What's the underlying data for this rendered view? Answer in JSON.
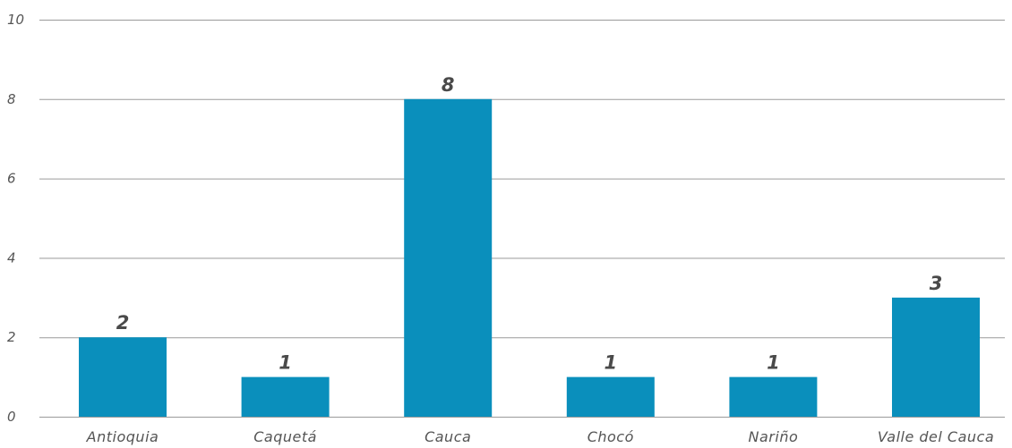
{
  "chart_data": {
    "type": "bar",
    "categories": [
      "Antioquia",
      "Caquetá",
      "Cauca",
      "Chocó",
      "Nariño",
      "Valle del Cauca"
    ],
    "values": [
      2,
      1,
      8,
      1,
      1,
      3
    ],
    "value_labels": [
      "2",
      "1",
      "8",
      "1",
      "1",
      "3"
    ],
    "yticks": [
      "0",
      "2",
      "4",
      "6",
      "8",
      "10"
    ],
    "ylim": [
      0,
      10
    ],
    "grid": true,
    "legend": "none",
    "bar_color": "#0a8fbc",
    "title": "",
    "xlabel": "",
    "ylabel": ""
  }
}
